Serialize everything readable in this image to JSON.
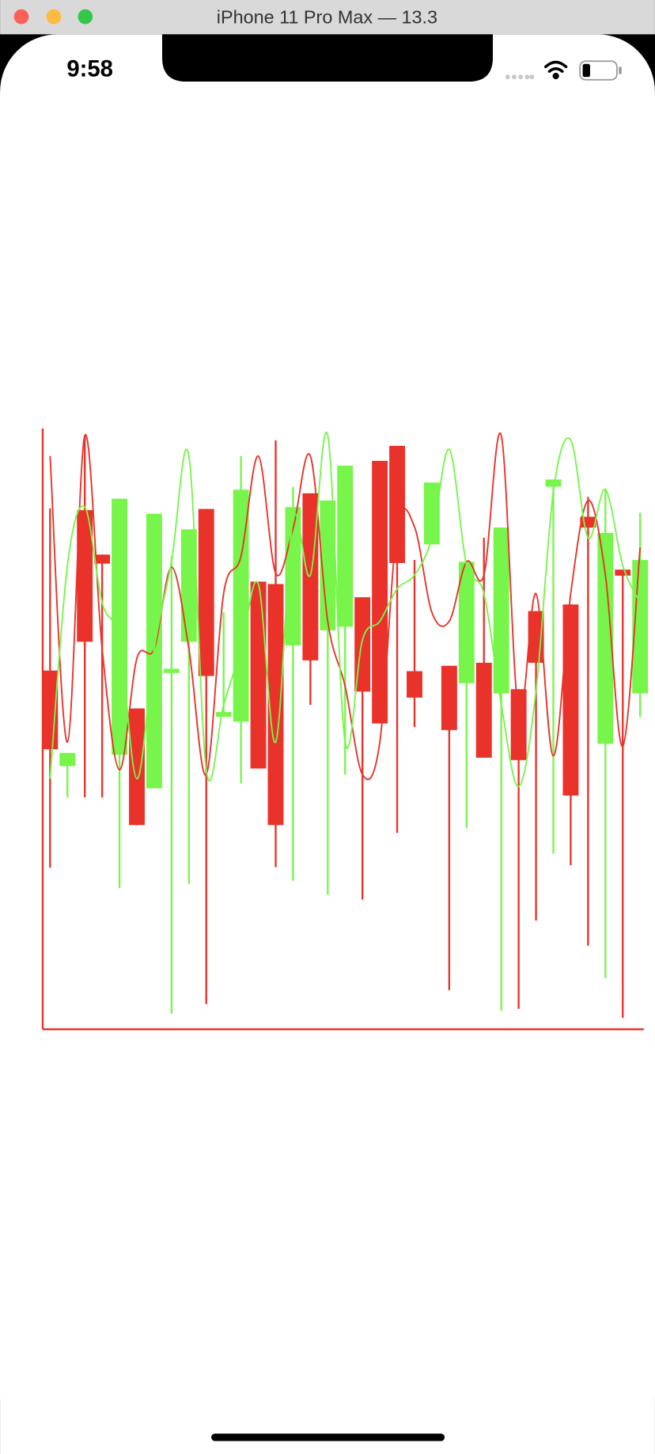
{
  "window": {
    "title": "iPhone 11 Pro Max — 13.3"
  },
  "status_bar": {
    "time": "9:58"
  },
  "chart_data": {
    "type": "candlestick",
    "up_color": "#77f54a",
    "down_color": "#e8322a",
    "axis_color": "#e8322a",
    "ylim": [
      0,
      100
    ],
    "open": [
      59.7,
      43.8,
      86.4,
      79.0,
      45.7,
      53.4,
      40.1,
      59.3,
      64.5,
      86.6,
      52.0,
      51.2,
      74.5,
      74.1,
      63.9,
      89.2,
      66.4,
      67.0,
      71.9,
      94.6,
      97.1,
      59.6,
      80.7,
      60.5,
      57.6,
      61.0,
      55.9,
      56.6,
      69.6,
      90.3,
      70.7,
      85.3,
      47.5,
      76.5,
      55.9
    ],
    "high": [
      86.7,
      46.0,
      98.8,
      79.0,
      88.3,
      53.4,
      85.8,
      78.7,
      83.2,
      86.6,
      69.4,
      95.4,
      74.5,
      98.0,
      90.3,
      89.2,
      88.0,
      93.8,
      71.9,
      94.6,
      97.1,
      78.1,
      91.0,
      60.5,
      77.8,
      81.8,
      83.5,
      56.6,
      69.6,
      91.5,
      70.7,
      88.6,
      90.0,
      76.5,
      86.0
    ],
    "low": [
      26.9,
      38.6,
      38.6,
      38.6,
      23.5,
      34.0,
      40.1,
      2.6,
      24.2,
      4.2,
      52.0,
      40.9,
      43.4,
      27.0,
      24.7,
      54.0,
      22.4,
      42.4,
      21.6,
      50.9,
      32.7,
      50.3,
      80.7,
      6.5,
      33.5,
      45.2,
      3.1,
      3.4,
      18.1,
      29.2,
      27.3,
      13.9,
      8.5,
      1.9,
      52.0
    ],
    "close": [
      46.6,
      46.0,
      64.5,
      77.5,
      88.3,
      34.0,
      85.8,
      60.0,
      83.2,
      58.8,
      52.8,
      89.8,
      43.4,
      34.0,
      86.9,
      61.4,
      88.0,
      93.8,
      56.2,
      50.9,
      77.6,
      55.2,
      91.0,
      49.8,
      77.8,
      45.2,
      83.5,
      44.8,
      61.0,
      91.5,
      38.9,
      83.5,
      82.6,
      75.5,
      78.1
    ],
    "lines": [
      {
        "color": "#e8322a",
        "values": [
          95.4,
          47.8,
          98.8,
          63.3,
          43.2,
          61.7,
          63.3,
          76.9,
          63.3,
          42.4,
          72.5,
          78.7,
          95.4,
          75.9,
          83.3,
          95.4,
          67.9,
          57.1,
          42.4,
          47.8,
          83.3,
          83.6,
          69.4,
          67.9,
          77.8,
          75.6,
          98.8,
          52.5,
          72.5,
          45.5,
          72.5,
          88.0,
          75.6,
          47.1,
          80.2
        ]
      },
      {
        "color": "#77f54a",
        "values": [
          41.7,
          77.2,
          86.9,
          71.0,
          64.8,
          41.7,
          63.3,
          77.9,
          95.4,
          43.2,
          54.0,
          63.3,
          74.1,
          47.8,
          84.9,
          75.6,
          98.8,
          47.8,
          64.8,
          67.9,
          73.3,
          75.6,
          81.8,
          96.5,
          77.2,
          72.5,
          54.0,
          40.4,
          56.3,
          89.5,
          98.1,
          81.8,
          89.8,
          77.2,
          71.0
        ]
      }
    ]
  }
}
